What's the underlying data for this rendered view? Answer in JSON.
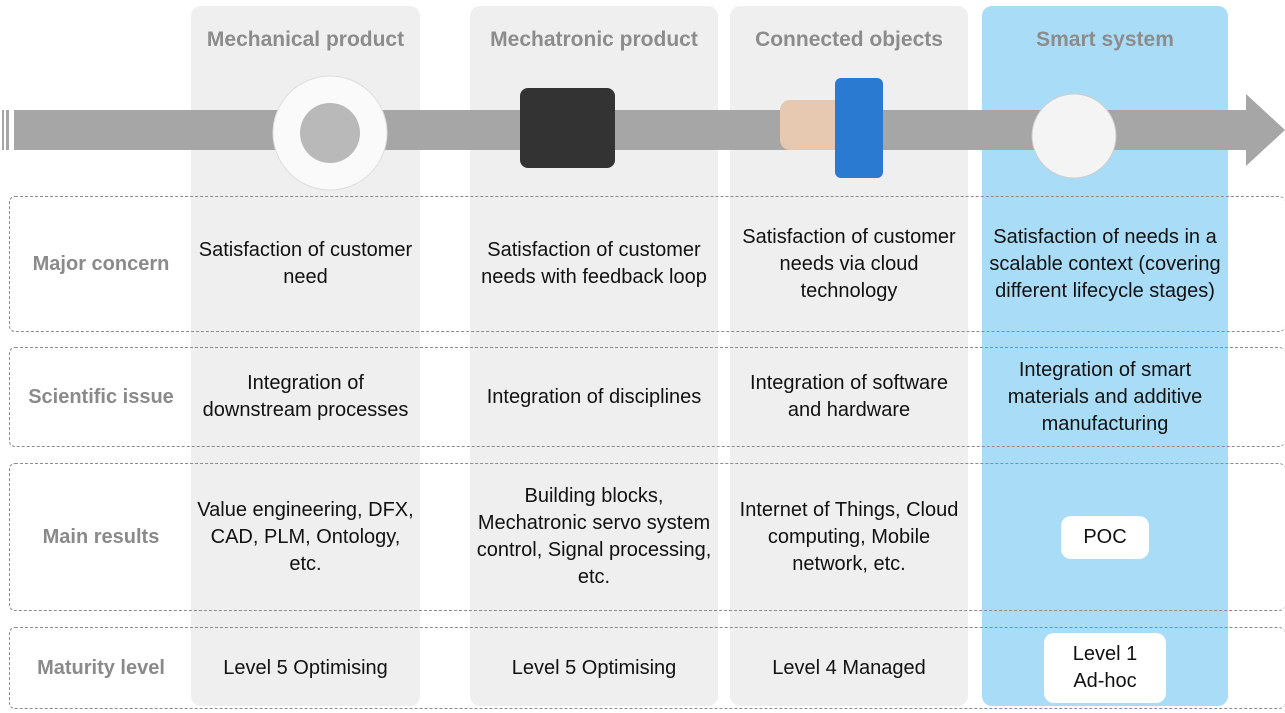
{
  "row_labels": [
    "Major concern",
    "Scientific issue",
    "Main results",
    "Maturity level"
  ],
  "columns": [
    {
      "title": "Mechanical product",
      "cells": [
        "Satisfaction of customer need",
        "Integration of downstream processes",
        "Value engineering, DFX, CAD, PLM, Ontology, etc.",
        "Level 5 Optimising"
      ]
    },
    {
      "title": "Mechatronic product",
      "cells": [
        "Satisfaction of customer needs with feedback loop",
        "Integration of disciplines",
        "Building blocks, Mechatronic servo system control, Signal processing, etc.",
        "Level 5 Optimising"
      ]
    },
    {
      "title": "Connected objects",
      "cells": [
        "Satisfaction of customer needs via cloud technology",
        "Integration of software and hardware",
        "Internet of Things, Cloud computing, Mobile network, etc.",
        "Level 4 Managed"
      ]
    },
    {
      "title": "Smart system",
      "cells": [
        "Satisfaction of needs in a scalable context (covering different lifecycle stages)",
        "Integration of smart materials and additive manufacturing",
        "POC",
        "Level 1 Ad-hoc"
      ]
    }
  ]
}
